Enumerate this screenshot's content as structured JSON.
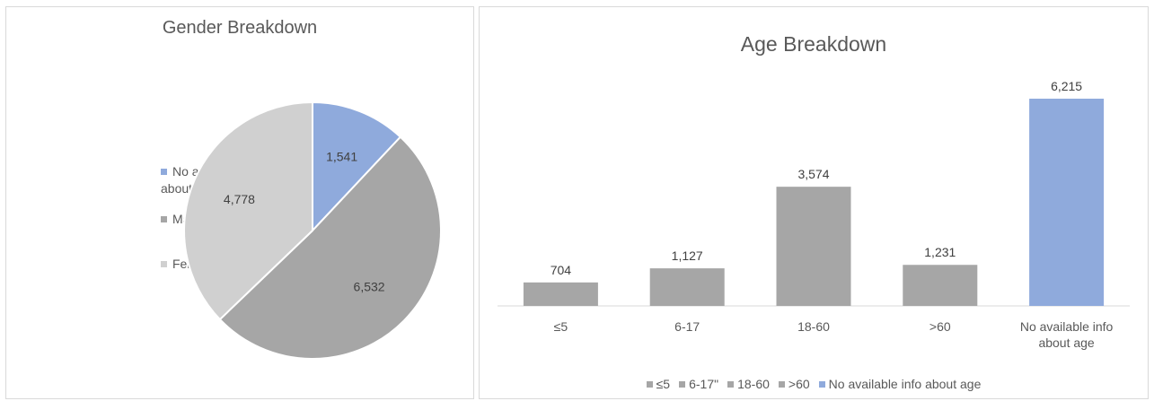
{
  "chart_data": [
    {
      "type": "pie",
      "title": "Gender Breakdown",
      "categories": [
        "No available info about gender",
        "Male",
        "Female"
      ],
      "values": [
        1541,
        6532,
        4778
      ],
      "value_labels": [
        "1,541",
        "6,532",
        "4,778"
      ],
      "colors": [
        "#8faadc",
        "#a6a6a6",
        "#d0d0d0"
      ],
      "legend": {
        "position": "left",
        "items": [
          {
            "label_lines": [
              "No available info",
              "about gender"
            ],
            "color": "#8faadc"
          },
          {
            "label_lines": [
              "Male"
            ],
            "color": "#a6a6a6"
          },
          {
            "label_lines": [
              "Female"
            ],
            "color": "#d0d0d0"
          }
        ]
      }
    },
    {
      "type": "bar",
      "title": "Age Breakdown",
      "categories": [
        "≤5",
        "6-17",
        "18-60",
        ">60",
        "No available info about age"
      ],
      "category_label_lines": [
        [
          "≤5"
        ],
        [
          "6-17"
        ],
        [
          "18-60"
        ],
        [
          ">60"
        ],
        [
          "No available info",
          "about age"
        ]
      ],
      "values": [
        704,
        1127,
        3574,
        1231,
        6215
      ],
      "value_labels": [
        "704",
        "1,127",
        "3,574",
        "1,231",
        "6,215"
      ],
      "colors": [
        "#a6a6a6",
        "#a6a6a6",
        "#a6a6a6",
        "#a6a6a6",
        "#8faadc"
      ],
      "ylim": [
        0,
        6215
      ],
      "grid": false,
      "legend": {
        "position": "bottom",
        "items": [
          {
            "label": "≤5",
            "color": "#a6a6a6"
          },
          {
            "label": "6-17\"",
            "color": "#a6a6a6"
          },
          {
            "label": "18-60",
            "color": "#a6a6a6"
          },
          {
            "label": ">60",
            "color": "#a6a6a6"
          },
          {
            "label": "No available info about age",
            "color": "#8faadc"
          }
        ]
      }
    }
  ]
}
